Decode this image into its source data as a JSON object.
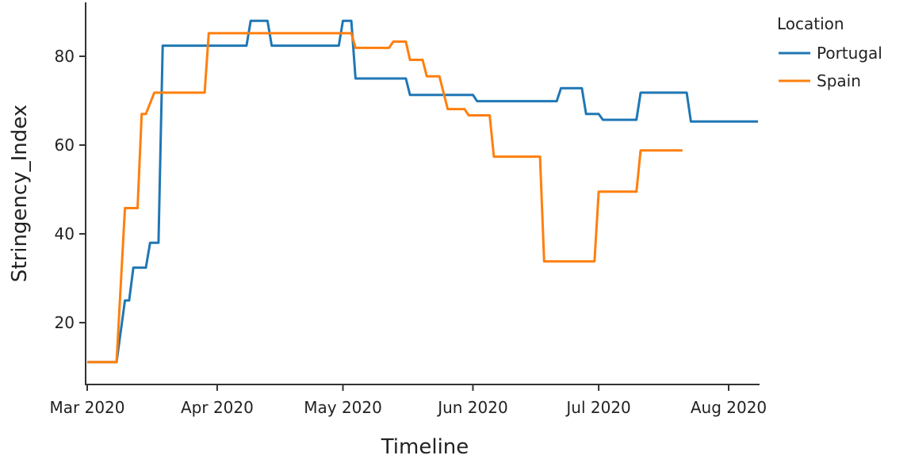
{
  "chart_data": {
    "type": "line",
    "title": "",
    "xlabel": "Timeline",
    "ylabel": "Stringency_Index",
    "xlim": [
      "2020-03-01",
      "2020-08-08"
    ],
    "ylim": [
      6.25,
      91.8
    ],
    "x_ticks": [
      {
        "date": "2020-03-01",
        "label": "Mar 2020"
      },
      {
        "date": "2020-04-01",
        "label": "Apr 2020"
      },
      {
        "date": "2020-05-01",
        "label": "May 2020"
      },
      {
        "date": "2020-06-01",
        "label": "Jun 2020"
      },
      {
        "date": "2020-07-01",
        "label": "Jul 2020"
      },
      {
        "date": "2020-08-01",
        "label": "Aug 2020"
      }
    ],
    "y_ticks": [
      20,
      40,
      60,
      80
    ],
    "grid": false,
    "legend": {
      "title": "Location",
      "placement": "top-right"
    },
    "series": [
      {
        "name": "Portugal",
        "color": "#1f77b4",
        "points": [
          [
            "2020-03-01",
            11.11
          ],
          [
            "2020-03-08",
            11.11
          ],
          [
            "2020-03-10",
            25
          ],
          [
            "2020-03-11",
            25
          ],
          [
            "2020-03-12",
            32.4
          ],
          [
            "2020-03-15",
            32.4
          ],
          [
            "2020-03-16",
            38
          ],
          [
            "2020-03-18",
            38
          ],
          [
            "2020-03-19",
            82.4
          ],
          [
            "2020-04-08",
            82.4
          ],
          [
            "2020-04-09",
            88
          ],
          [
            "2020-04-13",
            88
          ],
          [
            "2020-04-14",
            82.4
          ],
          [
            "2020-04-30",
            82.4
          ],
          [
            "2020-05-01",
            88
          ],
          [
            "2020-05-03",
            88
          ],
          [
            "2020-05-04",
            75
          ],
          [
            "2020-05-16",
            75
          ],
          [
            "2020-05-17",
            71.3
          ],
          [
            "2020-06-01",
            71.3
          ],
          [
            "2020-06-02",
            69.9
          ],
          [
            "2020-06-21",
            69.9
          ],
          [
            "2020-06-22",
            72.8
          ],
          [
            "2020-06-27",
            72.8
          ],
          [
            "2020-06-28",
            67
          ],
          [
            "2020-07-01",
            67
          ],
          [
            "2020-07-02",
            65.7
          ],
          [
            "2020-07-10",
            65.7
          ],
          [
            "2020-07-11",
            71.8
          ],
          [
            "2020-07-22",
            71.8
          ],
          [
            "2020-07-23",
            65.3
          ],
          [
            "2020-08-08",
            65.3
          ]
        ]
      },
      {
        "name": "Spain",
        "color": "#ff7f0e",
        "points": [
          [
            "2020-03-01",
            11.11
          ],
          [
            "2020-03-08",
            11.11
          ],
          [
            "2020-03-10",
            45.8
          ],
          [
            "2020-03-13",
            45.8
          ],
          [
            "2020-03-14",
            67
          ],
          [
            "2020-03-15",
            67
          ],
          [
            "2020-03-17",
            71.8
          ],
          [
            "2020-03-29",
            71.8
          ],
          [
            "2020-03-30",
            85.2
          ],
          [
            "2020-05-03",
            85.2
          ],
          [
            "2020-05-04",
            81.9
          ],
          [
            "2020-05-12",
            81.9
          ],
          [
            "2020-05-13",
            83.3
          ],
          [
            "2020-05-16",
            83.3
          ],
          [
            "2020-05-17",
            79.2
          ],
          [
            "2020-05-20",
            79.2
          ],
          [
            "2020-05-21",
            75.5
          ],
          [
            "2020-05-24",
            75.5
          ],
          [
            "2020-05-26",
            68.1
          ],
          [
            "2020-05-30",
            68.1
          ],
          [
            "2020-05-31",
            66.7
          ],
          [
            "2020-06-05",
            66.7
          ],
          [
            "2020-06-06",
            57.4
          ],
          [
            "2020-06-17",
            57.4
          ],
          [
            "2020-06-18",
            33.8
          ],
          [
            "2020-06-30",
            33.8
          ],
          [
            "2020-07-01",
            49.5
          ],
          [
            "2020-07-10",
            49.5
          ],
          [
            "2020-07-11",
            58.8
          ],
          [
            "2020-07-21",
            58.8
          ]
        ]
      }
    ]
  }
}
